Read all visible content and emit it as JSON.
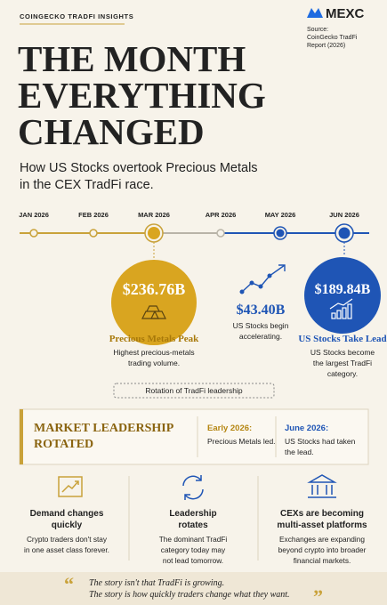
{
  "header": {
    "label": "COINGECKO TRADFI INSIGHTS",
    "brand": "MEXC",
    "source": [
      "Source:",
      "CoinGecko TradFi",
      "Report (2026)"
    ]
  },
  "title": [
    "THE MONTH",
    "EVERYTHING",
    "CHANGED"
  ],
  "subtitle": [
    "How US Stocks overtook Precious Metals",
    "in the CEX TradFi race."
  ],
  "timeline": {
    "months": [
      "JAN 2026",
      "FEB 2026",
      "MAR 2026",
      "APR 2026",
      "MAY 2026",
      "JUN 2026"
    ]
  },
  "peak": {
    "value": "$236.76B",
    "label": "Precious Metals Peak",
    "description": [
      "Highest precious-metals",
      "trading volume."
    ]
  },
  "acceleration": {
    "value": "$43.40B",
    "description": [
      "US Stocks begin",
      "accelerating."
    ]
  },
  "lead": {
    "value": "$189.84B",
    "label": "US Stocks Take Lead",
    "description": [
      "US Stocks become",
      "the largest TradFi",
      "category."
    ]
  },
  "rotation_note": "Rotation of TradFi leadership",
  "leadership": {
    "title": [
      "MARKET LEADERSHIP",
      "ROTATED"
    ],
    "early": {
      "label": "Early 2026:",
      "text": [
        "Precious Metals led."
      ]
    },
    "june": {
      "label": "June 2026:",
      "text": [
        "US Stocks had taken",
        "the lead."
      ]
    }
  },
  "cards": [
    {
      "title": [
        "Demand changes",
        "quickly"
      ],
      "text": [
        "Crypto traders don't stay",
        "in one asset class forever."
      ]
    },
    {
      "title": [
        "Leadership",
        "rotates"
      ],
      "text": [
        "The dominant TradFi",
        "category today may",
        "not lead tomorrow."
      ]
    },
    {
      "title": [
        "CEXs are becoming",
        "multi-asset platforms"
      ],
      "text": [
        "Exchanges are expanding",
        "beyond crypto into broader",
        "financial markets."
      ]
    }
  ],
  "quote": {
    "open_mark": "“",
    "lines": [
      "The story isn't that TradFi is growing.",
      "The story is how quickly traders change what they want."
    ],
    "close_mark": "”"
  }
}
